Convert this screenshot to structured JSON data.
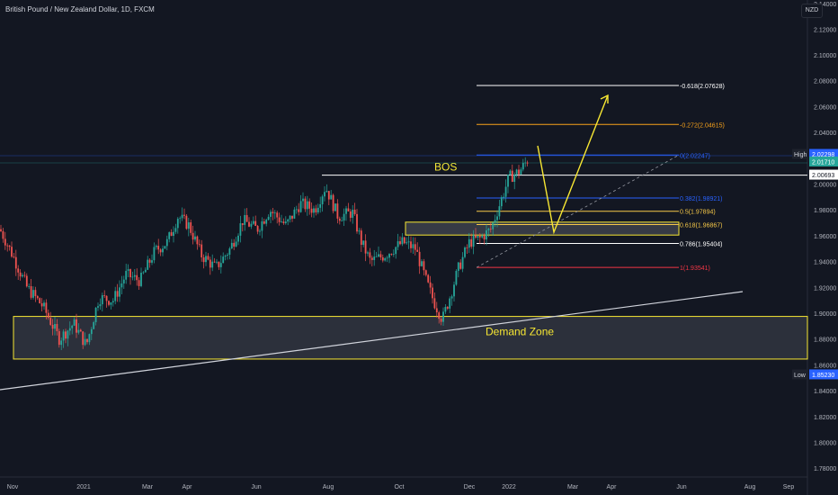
{
  "header": {
    "symbol_title": "British Pound / New Zealand Dollar, 1D, FXCM",
    "currency_button": "NZD"
  },
  "chart_data": {
    "type": "candlestick",
    "title": "British Pound / New Zealand Dollar, 1D, FXCM",
    "ylim": [
      1.77,
      2.13
    ],
    "y_ticks": [
      "2.12000",
      "2.10000",
      "2.08000",
      "2.06000",
      "2.04000",
      "2.02000",
      "2.00000",
      "1.98000",
      "1.96000",
      "1.94000",
      "1.92000",
      "1.90000",
      "1.88000",
      "1.86000",
      "1.84000",
      "1.82000",
      "1.80000",
      "1.78000"
    ],
    "y_top_partial_label": "2.14000",
    "x_ticks": [
      "Nov",
      "2021",
      "Mar",
      "Apr",
      "Jun",
      "Aug",
      "Oct",
      "Dec",
      "2022",
      "Mar",
      "Apr",
      "Jun",
      "Aug",
      "Sep"
    ],
    "price_labels": [
      {
        "tag": "High",
        "value": "2.02298"
      },
      {
        "tag": "",
        "value": "2.01710"
      },
      {
        "tag": "",
        "value": "2.00693"
      },
      {
        "tag": "Low",
        "value": "1.85230"
      }
    ],
    "fib_levels": [
      {
        "label": "-0.618(2.07628)",
        "value": 2.07628,
        "color": "#ffffff"
      },
      {
        "label": "-0.272(2.04615)",
        "value": 2.04615,
        "color": "#f7a21b"
      },
      {
        "label": "0(2.02247)",
        "value": 2.02247,
        "color": "#2962ff"
      },
      {
        "label": "0.382(1.98921)",
        "value": 1.98921,
        "color": "#2962ff"
      },
      {
        "label": "0.5(1.97894)",
        "value": 1.97894,
        "color": "#f7c948"
      },
      {
        "label": "0.618(1.96867)",
        "value": 1.96867,
        "color": "#f7c948"
      },
      {
        "label": "0.786(1.95404)",
        "value": 1.95404,
        "color": "#ffffff"
      },
      {
        "label": "1(1.93541)",
        "value": 1.93541,
        "color": "#f23645"
      }
    ],
    "annotations": {
      "bos": "BOS",
      "demand_zone": "Demand Zone"
    },
    "zones": {
      "demand": {
        "low": 1.8645,
        "high": 1.8975
      },
      "supply_box": {
        "low": 1.9605,
        "high": 1.9705
      }
    },
    "bos_level": 2.0069,
    "colors": {
      "up": "#26a69a",
      "down": "#ef5350",
      "background": "#131722",
      "grid": "#1e222d",
      "text": "#b2b5be",
      "annotation": "#f7e733"
    }
  }
}
